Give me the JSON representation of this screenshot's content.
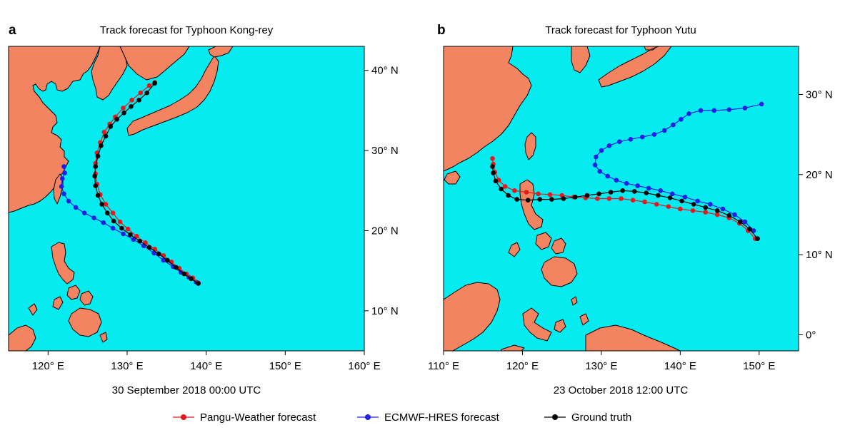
{
  "panels": [
    {
      "letter": "a",
      "title": "Track forecast for Typhoon Kong-rey",
      "caption": "30 September 2018 00:00 UTC",
      "lon_range": [
        115,
        160
      ],
      "lat_range": [
        5,
        43
      ],
      "lon_ticks": [
        "120° E",
        "130° E",
        "140° E",
        "150° E",
        "160° E"
      ],
      "lon_tick_values": [
        120,
        130,
        140,
        150,
        160
      ],
      "lat_ticks": [
        "10° N",
        "20° N",
        "30° N",
        "40° N"
      ],
      "lat_tick_values": [
        10,
        20,
        30,
        40
      ],
      "lat_axis_side": "right",
      "tracks": {
        "pangu": [
          [
            139.0,
            13.5
          ],
          [
            138.3,
            14.1
          ],
          [
            137.5,
            14.6
          ],
          [
            136.6,
            15.3
          ],
          [
            135.6,
            16.1
          ],
          [
            134.6,
            16.9
          ],
          [
            133.5,
            17.7
          ],
          [
            132.3,
            18.5
          ],
          [
            131.2,
            19.3
          ],
          [
            130.1,
            20.2
          ],
          [
            129.1,
            21.1
          ],
          [
            128.2,
            22.2
          ],
          [
            127.3,
            23.3
          ],
          [
            126.6,
            24.5
          ],
          [
            126.2,
            25.8
          ],
          [
            126.0,
            27.1
          ],
          [
            126.0,
            28.4
          ],
          [
            126.2,
            29.7
          ],
          [
            126.6,
            31.0
          ],
          [
            127.1,
            32.3
          ],
          [
            127.8,
            33.3
          ],
          [
            128.5,
            34.2
          ],
          [
            129.5,
            35.3
          ],
          [
            130.6,
            36.3
          ],
          [
            131.7,
            37.2
          ],
          [
            132.8,
            38.1
          ],
          [
            133.5,
            38.5
          ]
        ],
        "ecmwf": [
          [
            138.7,
            13.6
          ],
          [
            137.8,
            14.2
          ],
          [
            136.8,
            14.8
          ],
          [
            135.8,
            15.5
          ],
          [
            134.6,
            16.3
          ],
          [
            133.4,
            17.2
          ],
          [
            132.1,
            18.1
          ],
          [
            130.8,
            18.9
          ],
          [
            129.5,
            19.6
          ],
          [
            128.2,
            20.3
          ],
          [
            127.0,
            21.0
          ],
          [
            125.8,
            21.6
          ],
          [
            124.6,
            22.2
          ],
          [
            123.5,
            22.9
          ],
          [
            122.6,
            23.7
          ],
          [
            122.0,
            24.6
          ],
          [
            121.7,
            25.5
          ],
          [
            121.8,
            26.5
          ],
          [
            122.1,
            27.2
          ],
          [
            122.0,
            28.0
          ]
        ],
        "truth": [
          [
            139.0,
            13.4
          ],
          [
            138.1,
            14.0
          ],
          [
            137.2,
            14.6
          ],
          [
            136.2,
            15.4
          ],
          [
            135.1,
            16.3
          ],
          [
            134.0,
            17.1
          ],
          [
            132.8,
            17.9
          ],
          [
            131.6,
            18.7
          ],
          [
            130.4,
            19.5
          ],
          [
            129.3,
            20.3
          ],
          [
            128.3,
            21.2
          ],
          [
            127.5,
            22.2
          ],
          [
            126.8,
            23.3
          ],
          [
            126.3,
            24.4
          ],
          [
            126.0,
            25.6
          ],
          [
            125.9,
            26.8
          ],
          [
            126.0,
            28.0
          ],
          [
            126.3,
            29.3
          ],
          [
            126.7,
            30.6
          ],
          [
            127.3,
            31.8
          ],
          [
            127.9,
            33.0
          ],
          [
            128.7,
            33.9
          ],
          [
            129.6,
            34.7
          ],
          [
            130.5,
            35.5
          ],
          [
            131.5,
            36.3
          ],
          [
            132.5,
            37.2
          ],
          [
            133.5,
            38.4
          ]
        ]
      }
    },
    {
      "letter": "b",
      "title": "Track forecast for Typhoon Yutu",
      "caption": "23 October 2018 12:00 UTC",
      "lon_range": [
        110,
        155
      ],
      "lat_range": [
        -2,
        36
      ],
      "lon_ticks": [
        "110° E",
        "120° E",
        "130° E",
        "140° E",
        "150° E"
      ],
      "lon_tick_values": [
        110,
        120,
        130,
        140,
        150
      ],
      "lat_ticks": [
        "0°",
        "10° N",
        "20° N",
        "30° N"
      ],
      "lat_tick_values": [
        0,
        10,
        20,
        30
      ],
      "lat_axis_side": "right",
      "tracks": {
        "pangu": [
          [
            149.5,
            12.0
          ],
          [
            148.6,
            13.0
          ],
          [
            147.5,
            13.9
          ],
          [
            146.2,
            14.6
          ],
          [
            144.7,
            15.0
          ],
          [
            143.2,
            15.3
          ],
          [
            141.6,
            15.5
          ],
          [
            140.0,
            15.7
          ],
          [
            138.5,
            16.0
          ],
          [
            137.0,
            16.3
          ],
          [
            135.5,
            16.6
          ],
          [
            134.0,
            16.8
          ],
          [
            132.5,
            17.0
          ],
          [
            131.0,
            17.0
          ],
          [
            129.5,
            17.0
          ],
          [
            128.0,
            17.1
          ],
          [
            126.5,
            17.2
          ],
          [
            125.0,
            17.4
          ],
          [
            123.5,
            17.5
          ],
          [
            122.0,
            17.6
          ],
          [
            120.5,
            17.8
          ],
          [
            119.0,
            18.0
          ],
          [
            117.8,
            18.5
          ],
          [
            117.0,
            19.3
          ],
          [
            116.5,
            20.3
          ],
          [
            116.3,
            21.3
          ],
          [
            116.2,
            22.0
          ]
        ],
        "ecmwf": [
          [
            149.3,
            13.0
          ],
          [
            148.2,
            14.1
          ],
          [
            146.9,
            15.0
          ],
          [
            145.4,
            15.7
          ],
          [
            143.8,
            16.3
          ],
          [
            142.2,
            16.7
          ],
          [
            140.6,
            17.2
          ],
          [
            139.0,
            17.6
          ],
          [
            137.5,
            18.0
          ],
          [
            136.0,
            18.3
          ],
          [
            134.6,
            18.6
          ],
          [
            133.2,
            18.9
          ],
          [
            131.9,
            19.3
          ],
          [
            130.8,
            19.8
          ],
          [
            129.8,
            20.4
          ],
          [
            129.2,
            21.2
          ],
          [
            129.3,
            22.2
          ],
          [
            130.0,
            23.0
          ],
          [
            131.0,
            23.6
          ],
          [
            132.3,
            24.1
          ],
          [
            133.7,
            24.4
          ],
          [
            135.2,
            24.7
          ],
          [
            136.7,
            25.0
          ],
          [
            138.0,
            25.5
          ],
          [
            139.1,
            26.2
          ],
          [
            140.1,
            26.9
          ],
          [
            141.1,
            27.6
          ],
          [
            142.6,
            28.0
          ],
          [
            144.3,
            28.0
          ],
          [
            146.2,
            28.1
          ],
          [
            148.2,
            28.3
          ],
          [
            150.3,
            28.8
          ]
        ],
        "truth": [
          [
            149.8,
            12.0
          ],
          [
            148.8,
            13.2
          ],
          [
            147.6,
            14.1
          ],
          [
            146.2,
            14.9
          ],
          [
            144.7,
            15.5
          ],
          [
            143.2,
            15.9
          ],
          [
            141.7,
            16.3
          ],
          [
            140.2,
            16.7
          ],
          [
            138.7,
            17.1
          ],
          [
            137.2,
            17.4
          ],
          [
            135.7,
            17.7
          ],
          [
            134.2,
            17.9
          ],
          [
            132.7,
            18.0
          ],
          [
            131.2,
            17.8
          ],
          [
            129.7,
            17.6
          ],
          [
            128.2,
            17.4
          ],
          [
            126.7,
            17.2
          ],
          [
            125.2,
            17.0
          ],
          [
            123.7,
            16.9
          ],
          [
            122.2,
            16.9
          ],
          [
            120.7,
            16.8
          ],
          [
            119.3,
            16.9
          ],
          [
            118.2,
            17.4
          ],
          [
            117.3,
            18.2
          ],
          [
            116.6,
            19.2
          ],
          [
            116.3,
            20.2
          ],
          [
            116.2,
            21.0
          ]
        ]
      }
    }
  ],
  "legend": [
    {
      "label": "Pangu-Weather forecast",
      "color": "#e31a1c"
    },
    {
      "label": "ECMWF-HRES forecast",
      "color": "#1f1fe6"
    },
    {
      "label": "Ground truth",
      "color": "#000000"
    }
  ],
  "colors": {
    "sea": "#06ebf0",
    "land": "#f28462"
  }
}
